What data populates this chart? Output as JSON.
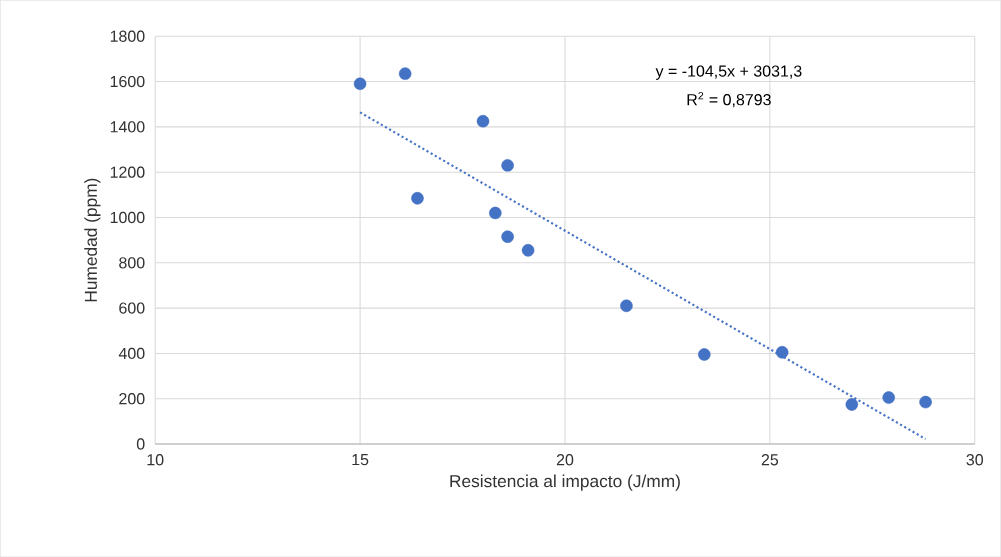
{
  "chart_data": {
    "type": "scatter",
    "xlabel": "Resistencia al impacto (J/mm)",
    "ylabel": "Humedad (ppm)",
    "xlim": [
      10,
      30
    ],
    "xticks": [
      10,
      15,
      20,
      25,
      30
    ],
    "ylim": [
      0,
      1800
    ],
    "yticks": [
      0,
      200,
      400,
      600,
      800,
      1000,
      1200,
      1400,
      1600,
      1800
    ],
    "grid": true,
    "series": [
      {
        "marker": "circle",
        "color": "#4472c4",
        "x": [
          15.0,
          16.1,
          16.4,
          18.0,
          18.6,
          18.3,
          18.6,
          19.1,
          21.5,
          23.4,
          25.3,
          27.0,
          27.9,
          28.8
        ],
        "values": [
          1590,
          1635,
          1085,
          1425,
          1230,
          1020,
          915,
          855,
          610,
          395,
          405,
          175,
          205,
          185
        ]
      },
      {
        "type": "line",
        "color": "#4472c4",
        "line_style": "dotted",
        "x": [
          15.0,
          28.8
        ],
        "values": [
          1464,
          22
        ]
      }
    ],
    "annotations": [
      "y = -104,5x + 3031,3",
      "R$^{2}$ = 0,8793"
    ]
  }
}
